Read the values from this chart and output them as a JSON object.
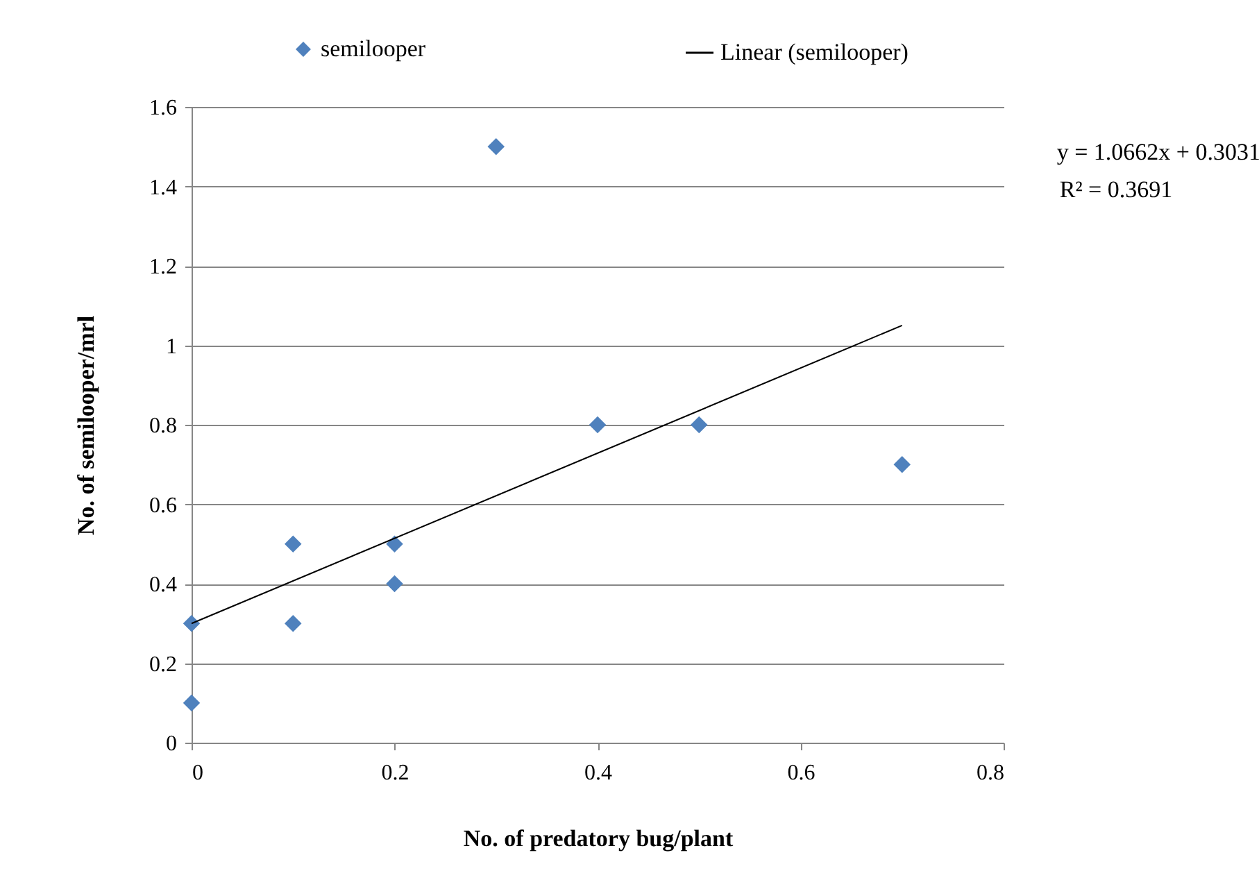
{
  "chart_data": {
    "type": "scatter",
    "xlabel": "No. of predatory  bug/plant",
    "ylabel": "No. of semilooper/mrl",
    "series": [
      {
        "name": "semilooper",
        "marker": "diamond",
        "color": "#4f81bd",
        "x": [
          0,
          0,
          0.1,
          0.1,
          0.2,
          0.2,
          0.3,
          0.4,
          0.5,
          0.7
        ],
        "values": [
          0.1,
          0.3,
          0.3,
          0.5,
          0.4,
          0.5,
          1.5,
          0.8,
          0.8,
          0.7
        ]
      },
      {
        "name": "Linear (semilooper)",
        "type": "line",
        "color": "#000000",
        "x": [
          0,
          0.7
        ],
        "values": [
          0.3,
          1.05
        ]
      }
    ],
    "xlim": [
      0,
      0.8
    ],
    "xticks": [
      0,
      0.2,
      0.4,
      0.6,
      0.8
    ],
    "ylim": [
      0,
      1.6
    ],
    "yticks": [
      0,
      0.2,
      0.4,
      0.6,
      0.8,
      1,
      1.2,
      1.4,
      1.6
    ],
    "grid": "y",
    "legend": "top",
    "annotations": [
      "y = 1.0662x + 0.3031",
      "R² = 0.3691"
    ]
  }
}
